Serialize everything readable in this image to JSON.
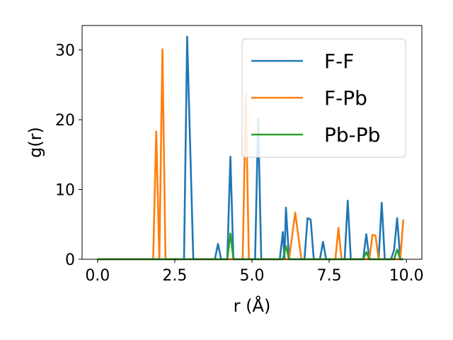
{
  "chart_data": {
    "type": "line",
    "title": "",
    "xlabel": "r (Å)",
    "ylabel": "g(r)",
    "xlim": [
      -0.5,
      10.5
    ],
    "ylim": [
      0,
      33.5
    ],
    "x_ticks": [
      0.0,
      2.5,
      5.0,
      7.5,
      10.0
    ],
    "x_tick_labels": [
      "0.0",
      "2.5",
      "5.0",
      "7.5",
      "10.0"
    ],
    "y_ticks": [
      0,
      10,
      20,
      30
    ],
    "y_tick_labels": [
      "0",
      "10",
      "20",
      "30"
    ],
    "grid": false,
    "legend_position": "top-right",
    "series": [
      {
        "name": "F-F",
        "color": "#1f77b4",
        "points": [
          [
            0.0,
            0
          ],
          [
            2.8,
            0
          ],
          [
            2.9,
            31.9
          ],
          [
            3.1,
            0
          ],
          [
            3.8,
            0
          ],
          [
            3.9,
            2.2
          ],
          [
            4.0,
            0
          ],
          [
            4.2,
            0
          ],
          [
            4.3,
            14.7
          ],
          [
            4.4,
            0
          ],
          [
            5.1,
            0
          ],
          [
            5.2,
            20.2
          ],
          [
            5.3,
            0
          ],
          [
            5.9,
            0
          ],
          [
            6.0,
            3.9
          ],
          [
            6.05,
            0
          ],
          [
            6.1,
            7.4
          ],
          [
            6.2,
            0
          ],
          [
            6.7,
            0
          ],
          [
            6.8,
            5.9
          ],
          [
            6.9,
            5.7
          ],
          [
            7.0,
            0
          ],
          [
            7.2,
            0
          ],
          [
            7.3,
            2.5
          ],
          [
            7.4,
            0
          ],
          [
            8.0,
            0
          ],
          [
            8.1,
            8.4
          ],
          [
            8.2,
            0
          ],
          [
            8.6,
            0
          ],
          [
            8.7,
            3.6
          ],
          [
            8.8,
            0
          ],
          [
            9.1,
            0
          ],
          [
            9.2,
            8.1
          ],
          [
            9.3,
            0
          ],
          [
            9.5,
            0
          ],
          [
            9.6,
            1.3
          ],
          [
            9.7,
            5.9
          ],
          [
            9.8,
            0
          ],
          [
            9.9,
            0
          ]
        ]
      },
      {
        "name": "F-Pb",
        "color": "#ff7f0e",
        "points": [
          [
            0.0,
            0
          ],
          [
            1.8,
            0
          ],
          [
            1.9,
            18.3
          ],
          [
            2.0,
            0
          ],
          [
            2.1,
            30.1
          ],
          [
            2.2,
            0
          ],
          [
            4.6,
            0
          ],
          [
            4.7,
            0
          ],
          [
            4.8,
            23.6
          ],
          [
            4.9,
            0
          ],
          [
            6.2,
            0
          ],
          [
            6.4,
            6.7
          ],
          [
            6.6,
            0
          ],
          [
            7.7,
            0
          ],
          [
            7.8,
            4.5
          ],
          [
            7.9,
            0
          ],
          [
            8.8,
            0
          ],
          [
            8.9,
            3.5
          ],
          [
            9.0,
            3.4
          ],
          [
            9.1,
            0
          ],
          [
            9.8,
            0
          ],
          [
            9.9,
            5.7
          ]
        ]
      },
      {
        "name": "Pb-Pb",
        "color": "#2ca02c",
        "points": [
          [
            0.0,
            0
          ],
          [
            4.2,
            0
          ],
          [
            4.3,
            3.7
          ],
          [
            4.4,
            0
          ],
          [
            6.0,
            0
          ],
          [
            6.1,
            1.9
          ],
          [
            6.2,
            0
          ],
          [
            8.6,
            0
          ],
          [
            8.7,
            1.0
          ],
          [
            8.8,
            0
          ],
          [
            9.6,
            0
          ],
          [
            9.7,
            1.4
          ],
          [
            9.8,
            0
          ],
          [
            9.9,
            0
          ]
        ]
      }
    ]
  }
}
